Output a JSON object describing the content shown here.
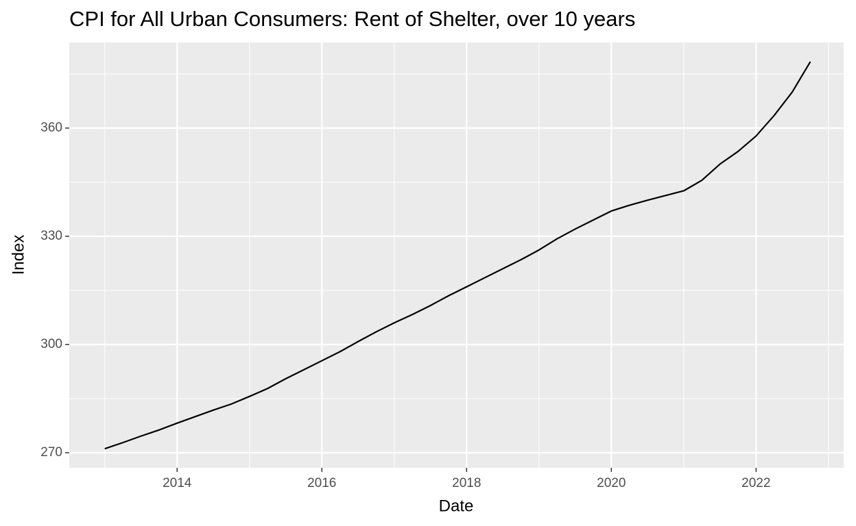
{
  "chart_data": {
    "type": "line",
    "title": "CPI for All Urban Consumers: Rent of Shelter, over 10 years",
    "x_label": "Date",
    "y_label": "Index",
    "x": [
      2013,
      2013.25,
      2013.5,
      2013.75,
      2014,
      2014.25,
      2014.5,
      2014.75,
      2015,
      2015.25,
      2015.5,
      2015.75,
      2016,
      2016.25,
      2016.5,
      2016.75,
      2017,
      2017.25,
      2017.5,
      2017.75,
      2018,
      2018.25,
      2018.5,
      2018.75,
      2019,
      2019.25,
      2019.5,
      2019.75,
      2020,
      2020.25,
      2020.5,
      2020.75,
      2021,
      2021.25,
      2021.5,
      2021.75,
      2022,
      2022.25,
      2022.5,
      2022.75
    ],
    "series": [
      {
        "name": "Index",
        "color": "#000000",
        "values": [
          271.1,
          272.8,
          274.6,
          276.3,
          278.2,
          280.0,
          281.8,
          283.5,
          285.6,
          287.8,
          290.5,
          293.0,
          295.5,
          298.0,
          300.8,
          303.5,
          306.0,
          308.3,
          310.8,
          313.5,
          316.0,
          318.5,
          321.0,
          323.5,
          326.2,
          329.3,
          332.0,
          334.5,
          337.0,
          338.6,
          340.0,
          341.3,
          342.6,
          345.5,
          350.0,
          353.5,
          357.8,
          363.5,
          370.0,
          378.4
        ]
      }
    ],
    "xlim": [
      2012.51,
      2023.21
    ],
    "ylim": [
      265.82,
      383.73
    ],
    "xticks": [
      2014,
      2016,
      2018,
      2020,
      2022
    ],
    "yticks": [
      270,
      300,
      330,
      360
    ],
    "grid": true
  }
}
